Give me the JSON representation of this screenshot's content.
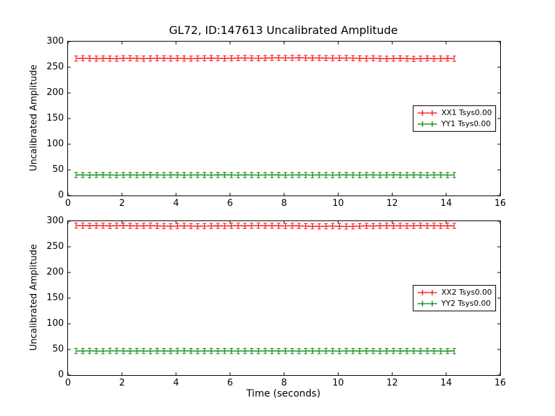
{
  "title": "GL72, ID:147613 Uncalibrated Amplitude",
  "xlabel": "Time (seconds)",
  "colors": {
    "xx": "#ff0000",
    "yy": "#008000",
    "axis": "#000000",
    "background": "#ffffff"
  },
  "chart_data": [
    {
      "type": "line",
      "subplot": "top",
      "ylabel": "Uncalibrated Amplitude",
      "xlim": [
        0,
        16
      ],
      "ylim": [
        0,
        300
      ],
      "xticks": [
        0,
        2,
        4,
        6,
        8,
        10,
        12,
        14,
        16
      ],
      "yticks": [
        0,
        50,
        100,
        150,
        200,
        250,
        300
      ],
      "grid": false,
      "legend_position": "center right",
      "x": [
        0.3,
        0.55,
        0.8,
        1.05,
        1.3,
        1.55,
        1.8,
        2.05,
        2.3,
        2.55,
        2.8,
        3.05,
        3.3,
        3.55,
        3.8,
        4.05,
        4.3,
        4.55,
        4.8,
        5.05,
        5.3,
        5.55,
        5.8,
        6.05,
        6.3,
        6.55,
        6.8,
        7.05,
        7.3,
        7.55,
        7.8,
        8.05,
        8.3,
        8.55,
        8.8,
        9.05,
        9.3,
        9.55,
        9.8,
        10.05,
        10.3,
        10.55,
        10.8,
        11.05,
        11.3,
        11.55,
        11.8,
        12.05,
        12.3,
        12.55,
        12.8,
        13.05,
        13.3,
        13.55,
        13.8,
        14.05,
        14.3
      ],
      "series": [
        {
          "name": "XX1",
          "label": "XX1 Tsys0.00",
          "color": "#ff0000",
          "yerr": 5,
          "values": [
            267,
            267.4,
            267.1,
            266.8,
            267.2,
            267.0,
            266.7,
            267.3,
            267.5,
            267.1,
            266.9,
            267.2,
            267.6,
            267.3,
            267.0,
            267.4,
            267.1,
            266.8,
            267.2,
            267.5,
            267.8,
            267.4,
            267.1,
            267.6,
            267.9,
            268.1,
            267.7,
            267.4,
            267.8,
            268.2,
            268.4,
            268.0,
            268.3,
            268.5,
            268.1,
            267.8,
            268.2,
            267.9,
            267.5,
            267.9,
            268.1,
            267.7,
            267.3,
            267.0,
            267.4,
            266.9,
            266.6,
            267.0,
            267.3,
            266.9,
            266.5,
            266.8,
            267.1,
            266.7,
            266.9,
            267.2,
            266.8
          ]
        },
        {
          "name": "YY1",
          "label": "YY1 Tsys0.00",
          "color": "#008000",
          "yerr": 5,
          "values": [
            40.2,
            40.0,
            39.8,
            40.1,
            40.3,
            40.0,
            39.7,
            40.0,
            40.2,
            39.9,
            40.1,
            40.3,
            40.0,
            39.8,
            40.1,
            40.2,
            39.9,
            40.0,
            40.2,
            40.0,
            39.8,
            40.1,
            40.3,
            40.0,
            39.9,
            40.1,
            40.0,
            39.8,
            40.0,
            40.2,
            40.1,
            39.9,
            40.0,
            40.2,
            40.0,
            39.8,
            40.1,
            40.0,
            39.9,
            40.1,
            40.2,
            40.0,
            39.8,
            40.0,
            40.1,
            39.9,
            40.0,
            40.2,
            40.0,
            39.9,
            40.1,
            40.0,
            39.8,
            40.0,
            40.1,
            39.9,
            40.0
          ]
        }
      ]
    },
    {
      "type": "line",
      "subplot": "bottom",
      "ylabel": "Uncalibrated Amplitude",
      "xlim": [
        0,
        16
      ],
      "ylim": [
        0,
        300
      ],
      "xticks": [
        0,
        2,
        4,
        6,
        8,
        10,
        12,
        14,
        16
      ],
      "yticks": [
        0,
        50,
        100,
        150,
        200,
        250,
        300
      ],
      "grid": false,
      "legend_position": "center right",
      "x": [
        0.3,
        0.55,
        0.8,
        1.05,
        1.3,
        1.55,
        1.8,
        2.05,
        2.3,
        2.55,
        2.8,
        3.05,
        3.3,
        3.55,
        3.8,
        4.05,
        4.3,
        4.55,
        4.8,
        5.05,
        5.3,
        5.55,
        5.8,
        6.05,
        6.3,
        6.55,
        6.8,
        7.05,
        7.3,
        7.55,
        7.8,
        8.05,
        8.3,
        8.55,
        8.8,
        9.05,
        9.3,
        9.55,
        9.8,
        10.05,
        10.3,
        10.55,
        10.8,
        11.05,
        11.3,
        11.55,
        11.8,
        12.05,
        12.3,
        12.55,
        12.8,
        13.05,
        13.3,
        13.55,
        13.8,
        14.05,
        14.3
      ],
      "series": [
        {
          "name": "XX2",
          "label": "XX2 Tsys0.00",
          "color": "#ff0000",
          "yerr": 5,
          "values": [
            291.5,
            291.2,
            291.0,
            291.3,
            291.1,
            290.8,
            291.2,
            291.4,
            291.0,
            290.7,
            290.9,
            291.2,
            290.8,
            290.5,
            290.2,
            290.6,
            290.9,
            290.5,
            290.1,
            290.4,
            290.7,
            291.0,
            290.6,
            290.9,
            291.2,
            290.8,
            291.1,
            291.3,
            290.9,
            291.2,
            291.0,
            290.7,
            291.1,
            290.8,
            290.4,
            290.1,
            289.8,
            290.2,
            290.5,
            290.1,
            289.7,
            290.0,
            290.4,
            290.8,
            290.5,
            290.9,
            291.2,
            290.8,
            291.1,
            290.7,
            291.0,
            291.3,
            290.9,
            291.2,
            290.8,
            291.1,
            290.9
          ]
        },
        {
          "name": "YY2",
          "label": "YY2 Tsys0.00",
          "color": "#008000",
          "yerr": 5,
          "values": [
            47.1,
            46.9,
            47.2,
            47.0,
            46.8,
            47.1,
            47.3,
            47.0,
            46.9,
            47.1,
            47.0,
            46.8,
            47.2,
            47.0,
            46.9,
            47.1,
            47.3,
            47.0,
            46.8,
            47.0,
            47.2,
            46.9,
            47.1,
            47.0,
            46.8,
            47.1,
            47.0,
            46.9,
            47.2,
            47.0,
            46.9,
            47.1,
            47.0,
            46.8,
            47.0,
            47.2,
            46.9,
            47.1,
            47.0,
            46.8,
            47.1,
            47.0,
            46.9,
            47.2,
            47.0,
            46.8,
            47.0,
            47.1,
            46.9,
            47.0,
            47.2,
            46.9,
            47.1,
            47.0,
            46.8,
            47.0,
            46.9
          ]
        }
      ]
    }
  ]
}
